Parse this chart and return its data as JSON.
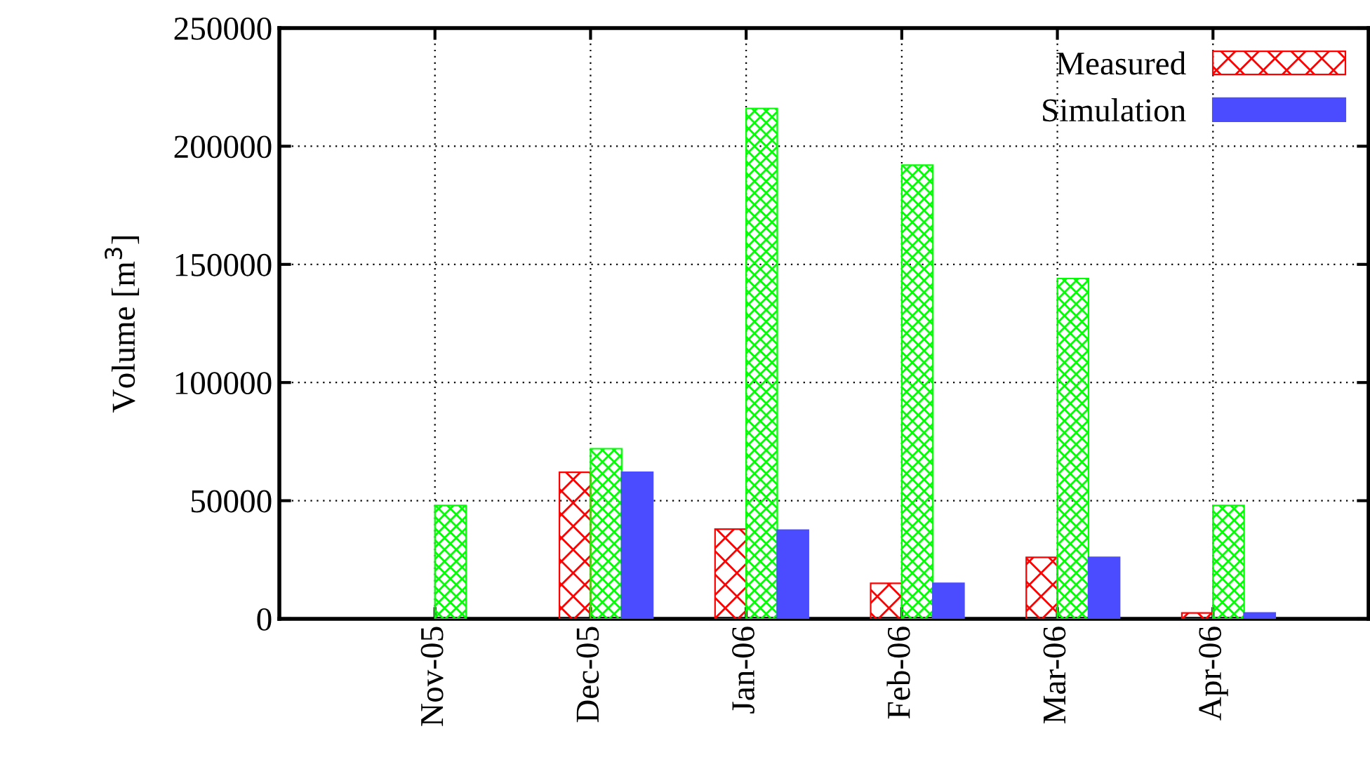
{
  "chart_data": {
    "type": "bar",
    "ylabel": "Volume [m$^{3}$]",
    "categories": [
      "Nov-05",
      "Dec-05",
      "Jan-06",
      "Feb-06",
      "Mar-06",
      "Apr-06"
    ],
    "series": [
      {
        "name": "Measured",
        "color": "#ff0000",
        "values": [
          null,
          62000,
          38000,
          15000,
          26000,
          2500
        ]
      },
      {
        "color": "#00ff00",
        "values": [
          48000,
          72000,
          216000,
          192000,
          144000,
          48000
        ]
      },
      {
        "name": "Simulation",
        "color": "#4b4bff",
        "values": [
          null,
          62000,
          37500,
          15000,
          26000,
          2500
        ]
      }
    ],
    "ylim": [
      0,
      250000
    ],
    "yticks": [
      0,
      50000,
      100000,
      150000,
      200000,
      250000
    ],
    "grid": true,
    "legend": "top right"
  }
}
